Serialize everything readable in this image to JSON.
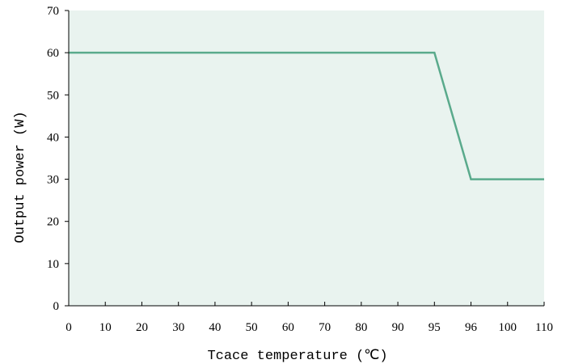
{
  "chart_data": {
    "type": "line",
    "xlabel": "Tcace temperature (℃)",
    "ylabel": "Output power (W)",
    "x_tick_labels": [
      "0",
      "10",
      "20",
      "30",
      "40",
      "50",
      "60",
      "70",
      "80",
      "90",
      "95",
      "96",
      "100",
      "110"
    ],
    "y_ticks": [
      0,
      10,
      20,
      30,
      40,
      50,
      60,
      70
    ],
    "ylim": [
      0,
      70
    ],
    "grid": false,
    "plot_background": "#e9f3ef",
    "series": [
      {
        "color": "#5aaa8c",
        "points": [
          {
            "x": "0",
            "y": 60
          },
          {
            "x": "95",
            "y": 60
          },
          {
            "x": "96",
            "y": 30
          },
          {
            "x": "110",
            "y": 30
          }
        ]
      }
    ]
  }
}
